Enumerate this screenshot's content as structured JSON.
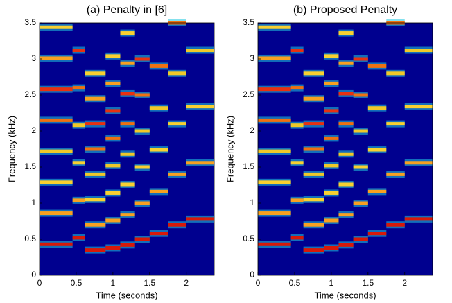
{
  "chart_data": [
    {
      "type": "spectrogram",
      "title": "(a) Penalty in [6]",
      "x_label": "Time (seconds)",
      "y_label": "Frequency (kHz)",
      "xlim": [
        0,
        2.38
      ],
      "ylim": [
        0,
        3.5
      ],
      "xticks": [
        0,
        0.5,
        1,
        1.5,
        2
      ],
      "yticks": [
        0,
        0.5,
        1,
        1.5,
        2,
        2.5,
        3,
        3.5
      ],
      "background_color": "#00008f",
      "segment_start": [
        0,
        0.45,
        0.62,
        0.9,
        1.1,
        1.3,
        1.5,
        1.75,
        2.0
      ],
      "segment_end": [
        0.45,
        0.62,
        0.9,
        1.1,
        1.3,
        1.5,
        1.75,
        2.0,
        2.38
      ],
      "tracks": [
        {
          "color": "#d81808",
          "values": [
            0.43,
            0.52,
            0.35,
            0.38,
            0.42,
            0.5,
            0.58,
            0.7,
            0.78
          ]
        },
        {
          "color": "#f8a020",
          "values": [
            0.86,
            1.04,
            0.7,
            0.76,
            0.84,
            1.0,
            1.16,
            1.4,
            1.56
          ]
        },
        {
          "color": "#f8d030",
          "values": [
            1.29,
            1.56,
            1.05,
            1.14,
            1.26,
            1.5,
            1.74,
            2.1,
            2.34
          ]
        },
        {
          "color": "#f0c828",
          "values": [
            1.72,
            2.08,
            1.4,
            1.52,
            1.68,
            2.0,
            2.32,
            2.8,
            3.12
          ]
        },
        {
          "color": "#f07010",
          "values": [
            2.15,
            2.6,
            1.75,
            1.9,
            2.1,
            2.5,
            2.9,
            3.5,
            null
          ]
        },
        {
          "color": "#e83010",
          "values": [
            2.58,
            3.12,
            2.1,
            2.28,
            2.52,
            3.0,
            null,
            null,
            null
          ]
        },
        {
          "color": "#f8a020",
          "values": [
            3.01,
            null,
            2.45,
            2.66,
            2.94,
            null,
            null,
            null,
            null
          ]
        },
        {
          "color": "#f8d030",
          "values": [
            3.44,
            null,
            2.8,
            3.04,
            3.36,
            null,
            null,
            null,
            null
          ]
        }
      ]
    },
    {
      "type": "spectrogram",
      "title": "(b) Proposed Penalty",
      "x_label": "Time (seconds)",
      "y_label": "Frequency (kHz)",
      "xlim": [
        0,
        2.38
      ],
      "ylim": [
        0,
        3.5
      ],
      "xticks": [
        0,
        0.5,
        1,
        1.5,
        2
      ],
      "yticks": [
        0,
        0.5,
        1,
        1.5,
        2,
        2.5,
        3,
        3.5
      ],
      "background_color": "#00008f",
      "segment_start": [
        0,
        0.45,
        0.62,
        0.9,
        1.1,
        1.3,
        1.5,
        1.75,
        2.0
      ],
      "segment_end": [
        0.45,
        0.62,
        0.9,
        1.1,
        1.3,
        1.5,
        1.75,
        2.0,
        2.38
      ],
      "tracks": [
        {
          "color": "#d81808",
          "values": [
            0.43,
            0.52,
            0.35,
            0.38,
            0.42,
            0.5,
            0.58,
            0.7,
            0.78
          ]
        },
        {
          "color": "#f8a020",
          "values": [
            0.86,
            1.04,
            0.7,
            0.76,
            0.84,
            1.0,
            1.16,
            1.4,
            1.56
          ]
        },
        {
          "color": "#f8d030",
          "values": [
            1.29,
            1.56,
            1.05,
            1.14,
            1.26,
            1.5,
            1.74,
            2.1,
            2.34
          ]
        },
        {
          "color": "#f0c828",
          "values": [
            1.72,
            2.08,
            1.4,
            1.52,
            1.68,
            2.0,
            2.32,
            2.8,
            3.12
          ]
        },
        {
          "color": "#f07010",
          "values": [
            2.15,
            2.6,
            1.75,
            1.9,
            2.1,
            2.5,
            2.9,
            3.5,
            null
          ]
        },
        {
          "color": "#e83010",
          "values": [
            2.58,
            3.12,
            2.1,
            2.28,
            2.52,
            3.0,
            null,
            null,
            null
          ]
        },
        {
          "color": "#f8a020",
          "values": [
            3.01,
            null,
            2.45,
            2.66,
            2.94,
            null,
            null,
            null,
            null
          ]
        },
        {
          "color": "#f8d030",
          "values": [
            3.44,
            null,
            2.8,
            3.04,
            3.36,
            null,
            null,
            null,
            null
          ]
        }
      ]
    }
  ]
}
